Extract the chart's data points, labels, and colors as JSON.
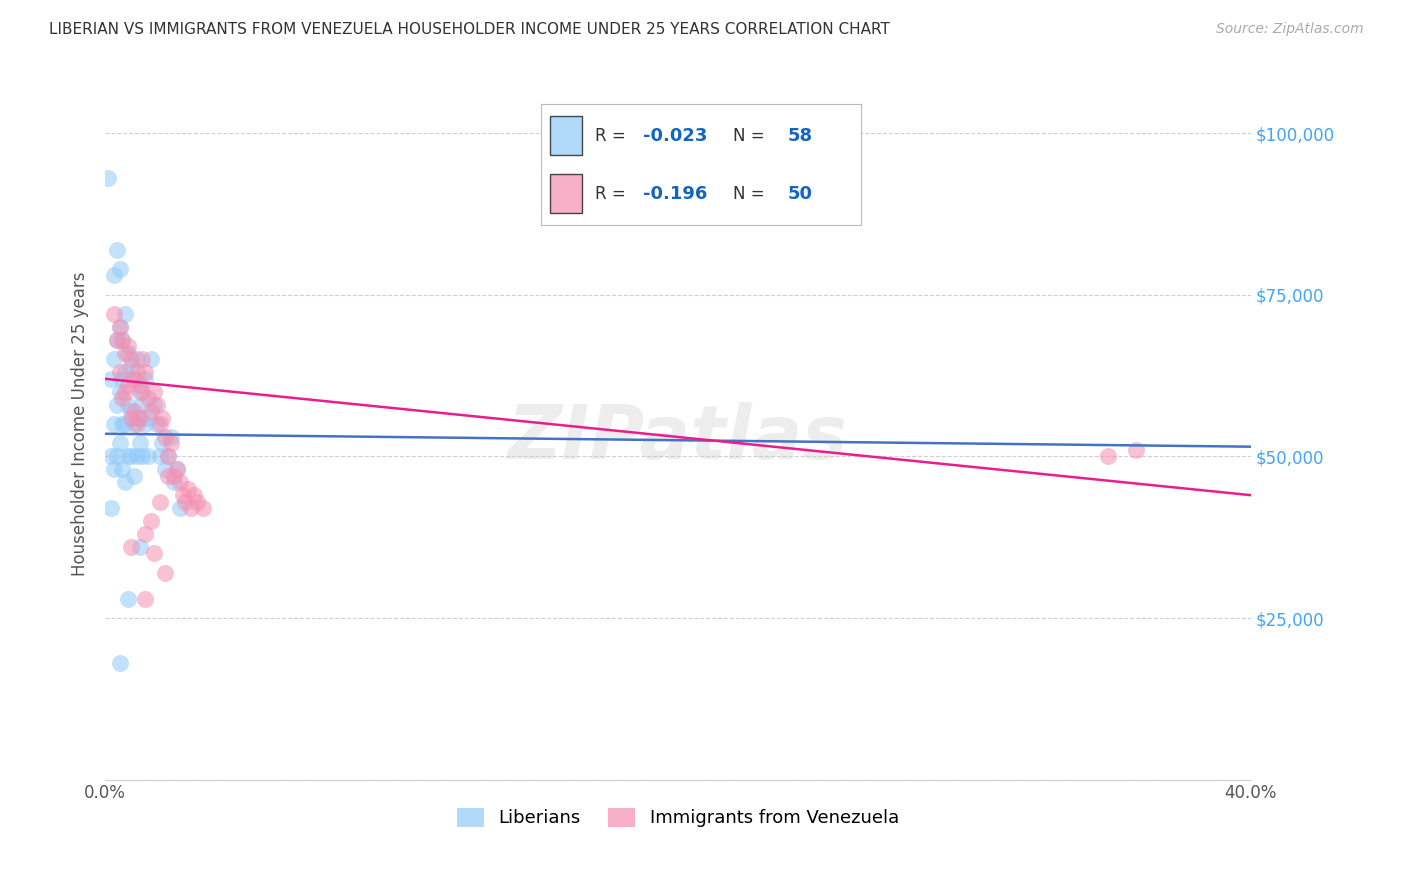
{
  "title": "LIBERIAN VS IMMIGRANTS FROM VENEZUELA HOUSEHOLDER INCOME UNDER 25 YEARS CORRELATION CHART",
  "source": "Source: ZipAtlas.com",
  "ylabel": "Householder Income Under 25 years",
  "xlim": [
    0.0,
    0.4
  ],
  "ylim": [
    0,
    110000
  ],
  "yticks": [
    0,
    25000,
    50000,
    75000,
    100000
  ],
  "ytick_labels": [
    "",
    "$25,000",
    "$50,000",
    "$75,000",
    "$100,000"
  ],
  "background_color": "#ffffff",
  "grid_color": "#d0d0d0",
  "watermark_text": "ZIPatlas",
  "liberian_color": "#90caf9",
  "venezuela_color": "#f48fb1",
  "liberian_line_color": "#4472c4",
  "venezuela_line_color": "#e91e8c",
  "R_liberian": -0.023,
  "N_liberian": 58,
  "R_venezuela": -0.196,
  "N_venezuela": 50,
  "liberian_x": [
    0.001,
    0.002,
    0.002,
    0.002,
    0.003,
    0.003,
    0.003,
    0.003,
    0.004,
    0.004,
    0.004,
    0.004,
    0.005,
    0.005,
    0.005,
    0.005,
    0.006,
    0.006,
    0.006,
    0.006,
    0.007,
    0.007,
    0.007,
    0.007,
    0.008,
    0.008,
    0.008,
    0.009,
    0.009,
    0.009,
    0.01,
    0.01,
    0.01,
    0.011,
    0.011,
    0.011,
    0.012,
    0.012,
    0.013,
    0.013,
    0.014,
    0.014,
    0.015,
    0.015,
    0.016,
    0.017,
    0.018,
    0.019,
    0.02,
    0.021,
    0.022,
    0.023,
    0.024,
    0.025,
    0.026,
    0.005,
    0.008,
    0.012
  ],
  "liberian_y": [
    93000,
    62000,
    50000,
    42000,
    78000,
    65000,
    55000,
    48000,
    82000,
    68000,
    58000,
    50000,
    79000,
    70000,
    60000,
    52000,
    68000,
    62000,
    55000,
    48000,
    72000,
    63000,
    55000,
    46000,
    66000,
    58000,
    50000,
    64000,
    57000,
    50000,
    62000,
    55000,
    47000,
    65000,
    56000,
    50000,
    60000,
    52000,
    58000,
    50000,
    62000,
    55000,
    56000,
    50000,
    65000,
    58000,
    55000,
    50000,
    52000,
    48000,
    50000,
    53000,
    46000,
    48000,
    42000,
    18000,
    28000,
    36000
  ],
  "venezuela_x": [
    0.003,
    0.004,
    0.005,
    0.005,
    0.006,
    0.006,
    0.007,
    0.007,
    0.008,
    0.008,
    0.009,
    0.009,
    0.01,
    0.01,
    0.011,
    0.011,
    0.012,
    0.012,
    0.013,
    0.013,
    0.014,
    0.015,
    0.016,
    0.017,
    0.018,
    0.019,
    0.02,
    0.021,
    0.022,
    0.023,
    0.024,
    0.025,
    0.026,
    0.027,
    0.028,
    0.029,
    0.03,
    0.031,
    0.032,
    0.034,
    0.009,
    0.014,
    0.016,
    0.019,
    0.022,
    0.014,
    0.017,
    0.021,
    0.35,
    0.36
  ],
  "venezuela_y": [
    72000,
    68000,
    70000,
    63000,
    68000,
    59000,
    66000,
    60000,
    67000,
    61000,
    65000,
    56000,
    62000,
    57000,
    63000,
    55000,
    61000,
    56000,
    65000,
    60000,
    63000,
    59000,
    57000,
    60000,
    58000,
    55000,
    56000,
    53000,
    50000,
    52000,
    47000,
    48000,
    46000,
    44000,
    43000,
    45000,
    42000,
    44000,
    43000,
    42000,
    36000,
    38000,
    40000,
    43000,
    47000,
    28000,
    35000,
    32000,
    50000,
    51000
  ]
}
